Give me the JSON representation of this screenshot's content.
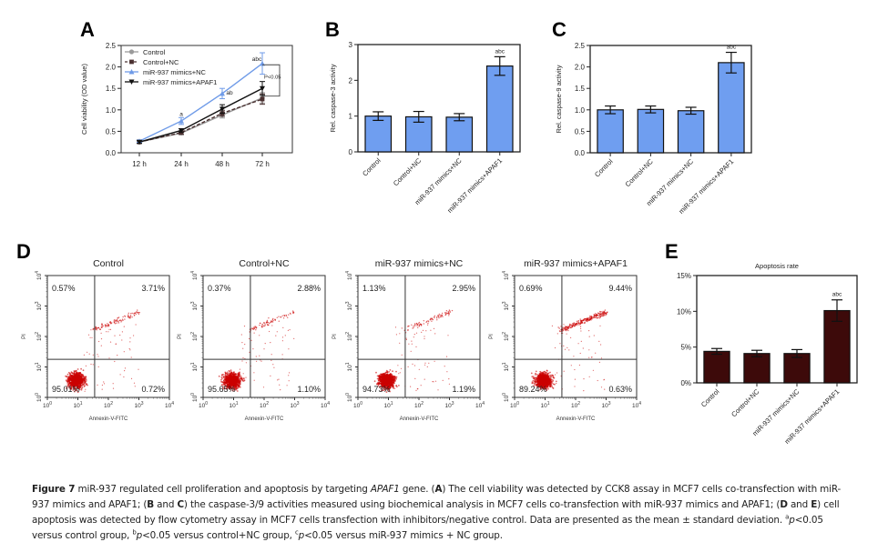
{
  "figure": {
    "panel_letters": [
      "A",
      "B",
      "C",
      "D",
      "E"
    ],
    "caption": {
      "label": "Figure 7",
      "parts": [
        {
          "t": "text",
          "v": " miR-937 regulated cell proliferation and apoptosis by targeting "
        },
        {
          "t": "i",
          "v": "APAF1"
        },
        {
          "t": "text",
          "v": " gene. ("
        },
        {
          "t": "b",
          "v": "A"
        },
        {
          "t": "text",
          "v": ") The cell viability was detected by CCK8 assay in MCF7 cells co-transfection with miR-937 mimics and APAF1; ("
        },
        {
          "t": "b",
          "v": "B"
        },
        {
          "t": "text",
          "v": " and "
        },
        {
          "t": "b",
          "v": "C"
        },
        {
          "t": "text",
          "v": ") the caspase-3/9 activities measured using biochemical analysis in MCF7 cells co-transfection with miR-937 mimics and APAF1; ("
        },
        {
          "t": "b",
          "v": "D"
        },
        {
          "t": "text",
          "v": " and "
        },
        {
          "t": "b",
          "v": "E"
        },
        {
          "t": "text",
          "v": ") cell apoptosis was detected by flow cytometry assay in MCF7 cells transfection with inhibitors/negative control. Data are presented as the mean ± standard deviation. "
        },
        {
          "t": "sup",
          "v": "a"
        },
        {
          "t": "i",
          "v": "p"
        },
        {
          "t": "text",
          "v": "<0.05 versus control group, "
        },
        {
          "t": "sup",
          "v": "b"
        },
        {
          "t": "i",
          "v": "p"
        },
        {
          "t": "text",
          "v": "<0.05 versus control+NC group, "
        },
        {
          "t": "sup",
          "v": "c"
        },
        {
          "t": "i",
          "v": "p"
        },
        {
          "t": "text",
          "v": "<0.05 versus miR-937 mimics + NC group."
        }
      ]
    }
  },
  "colors": {
    "blue_bar": "#6f9ef0",
    "dark_bar": "#3d0a0a",
    "control_line": "#9a9a9a",
    "nc_line": "#4a3030",
    "mimics_line": "#6f9be8",
    "apaf1_line": "#111111",
    "flow_dots": "#cc0000"
  },
  "chart_data": [
    {
      "id": "A",
      "type": "line",
      "title": "",
      "xlabel": "",
      "ylabel": "Cell viability (OD value)",
      "categories": [
        "12 h",
        "24 h",
        "48 h",
        "72 h"
      ],
      "ylim": [
        0,
        2.5
      ],
      "yticks": [
        "0.0",
        "0.5",
        "1.0",
        "1.5",
        "2.0",
        "2.5"
      ],
      "legend_position": "top-left",
      "series": [
        {
          "name": "Control",
          "marker": "circle",
          "values": [
            0.25,
            0.46,
            0.88,
            1.28
          ],
          "errors": [
            0.03,
            0.04,
            0.07,
            0.12
          ]
        },
        {
          "name": "Control+NC",
          "marker": "square",
          "values": [
            0.25,
            0.47,
            0.92,
            1.25
          ],
          "errors": [
            0.03,
            0.04,
            0.07,
            0.12
          ]
        },
        {
          "name": "miR-937 mimics+NC",
          "marker": "triangle-up",
          "values": [
            0.27,
            0.74,
            1.38,
            2.08
          ],
          "errors": [
            0.03,
            0.08,
            0.12,
            0.25
          ]
        },
        {
          "name": "miR-937 mimics+APAF1",
          "marker": "triangle-down",
          "values": [
            0.25,
            0.52,
            1.02,
            1.5
          ],
          "errors": [
            0.03,
            0.04,
            0.1,
            0.16
          ]
        }
      ],
      "annotations": [
        {
          "text": "a",
          "category": "24 h"
        },
        {
          "text": "ab",
          "category": "48 h"
        },
        {
          "text": "abc",
          "category": "72 h"
        },
        {
          "text": "P<0.05",
          "category": "72 h",
          "kind": "bracket"
        }
      ]
    },
    {
      "id": "B",
      "type": "bar",
      "title": "",
      "xlabel": "",
      "ylabel": "Rel. caspase-3 activity",
      "categories": [
        "Control",
        "Control+NC",
        "miR-937 mimics+NC",
        "miR-937 mimics+APAF1"
      ],
      "values": [
        1.0,
        0.98,
        0.97,
        2.4
      ],
      "errors": [
        0.12,
        0.15,
        0.1,
        0.26
      ],
      "ylim": [
        0,
        3
      ],
      "yticks": [
        "0",
        "1",
        "2",
        "3"
      ],
      "annotations": [
        {
          "text": "abc",
          "category": "miR-937 mimics+APAF1"
        }
      ]
    },
    {
      "id": "C",
      "type": "bar",
      "title": "",
      "xlabel": "",
      "ylabel": "Rel. caspase-9 activity",
      "categories": [
        "Control",
        "Control+NC",
        "miR-937 mimics+NC",
        "miR-937 mimics+APAF1"
      ],
      "values": [
        1.0,
        1.01,
        0.98,
        2.1
      ],
      "errors": [
        0.09,
        0.08,
        0.08,
        0.24
      ],
      "ylim": [
        0,
        2.5
      ],
      "yticks": [
        "0.0",
        "0.5",
        "1.0",
        "1.5",
        "2.0",
        "2.5"
      ],
      "annotations": [
        {
          "text": "abc",
          "category": "miR-937 mimics+APAF1"
        }
      ]
    },
    {
      "id": "D",
      "type": "scatter",
      "xlabel": "Annexin-V-FITC",
      "ylabel": "PI",
      "xscale": "log",
      "yscale": "log",
      "xlim": [
        1,
        10000
      ],
      "ylim": [
        1,
        10000
      ],
      "ticks": [
        "10^0",
        "10^1",
        "10^2",
        "10^3",
        "10^4"
      ],
      "panels": [
        {
          "title": "Control",
          "quadrants": {
            "UL": "0.57%",
            "UR": "3.71%",
            "LL": "95.01%",
            "LR": "0.72%"
          }
        },
        {
          "title": "Control+NC",
          "quadrants": {
            "UL": "0.37%",
            "UR": "2.88%",
            "LL": "95.65%",
            "LR": "1.10%"
          }
        },
        {
          "title": "miR-937 mimics+NC",
          "quadrants": {
            "UL": "1.13%",
            "UR": "2.95%",
            "LL": "94.73%",
            "LR": "1.19%"
          }
        },
        {
          "title": "miR-937 mimics+APAF1",
          "quadrants": {
            "UL": "0.69%",
            "UR": "9.44%",
            "LL": "89.24%",
            "LR": "0.63%"
          }
        }
      ]
    },
    {
      "id": "E",
      "type": "bar",
      "title": "Apoptosis rate",
      "xlabel": "",
      "ylabel": "",
      "categories": [
        "Control",
        "Control+NC",
        "miR-937 mimics+NC",
        "miR-937 mimics+APAF1"
      ],
      "values": [
        4.4,
        4.1,
        4.1,
        10.1
      ],
      "errors": [
        0.4,
        0.45,
        0.55,
        1.5
      ],
      "ylim": [
        0,
        15
      ],
      "yticks": [
        "0%",
        "5%",
        "10%",
        "15%"
      ],
      "annotations": [
        {
          "text": "abc",
          "category": "miR-937 mimics+APAF1"
        }
      ]
    }
  ]
}
